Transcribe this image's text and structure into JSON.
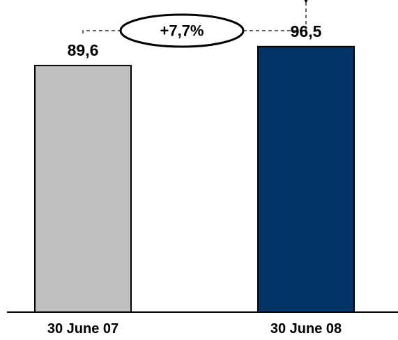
{
  "chart_data": {
    "type": "bar",
    "categories": [
      "30 June 07",
      "30 June 08"
    ],
    "values": [
      89.6,
      96.5
    ],
    "value_labels": [
      "89,6",
      "96,5"
    ],
    "colors": [
      "#c0c0c0",
      "#003366"
    ],
    "title": "",
    "xlabel": "",
    "ylabel": "",
    "ylim": [
      0,
      100
    ],
    "grid": false,
    "legend": "none",
    "annotation": {
      "text": "+7,7%",
      "from_category": "30 June 07",
      "to_category": "30 June 08",
      "style": "dashed-arrow-with-ellipse"
    }
  }
}
